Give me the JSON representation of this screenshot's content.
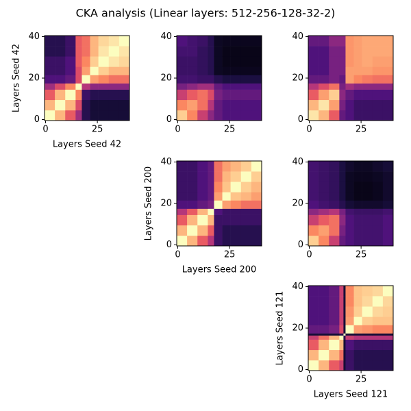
{
  "title": "CKA analysis (Linear layers: 512-256-128-32-2)",
  "chart_data": [
    {
      "type": "heatmap",
      "colormap": "magma",
      "xlabel": "Layers Seed 42",
      "ylabel": "Layers Seed 42",
      "xlim": [
        -0.5,
        40.5
      ],
      "ylim": [
        -0.5,
        40.5
      ],
      "xticks": [
        0,
        25
      ],
      "yticks": [
        0,
        20,
        40
      ],
      "xbins": [
        -0.5,
        4.5,
        9.5,
        14.5,
        17.5,
        21.5,
        25.5,
        30.5,
        35.5,
        40.5
      ],
      "ybins": [
        -0.5,
        4.5,
        9.5,
        14.5,
        17.5,
        21.5,
        25.5,
        30.5,
        35.5,
        40.5
      ],
      "values": [
        [
          1.0,
          0.85,
          0.65,
          0.45,
          0.15,
          0.1,
          0.1,
          0.1,
          0.1
        ],
        [
          0.85,
          1.0,
          0.85,
          0.6,
          0.15,
          0.1,
          0.1,
          0.1,
          0.1
        ],
        [
          0.65,
          0.85,
          1.0,
          0.75,
          0.2,
          0.15,
          0.15,
          0.15,
          0.15
        ],
        [
          0.45,
          0.6,
          0.75,
          1.0,
          0.5,
          0.4,
          0.4,
          0.4,
          0.4
        ],
        [
          0.25,
          0.25,
          0.3,
          0.6,
          1.0,
          0.8,
          0.75,
          0.7,
          0.7
        ],
        [
          0.2,
          0.2,
          0.25,
          0.6,
          0.8,
          1.0,
          0.9,
          0.85,
          0.85
        ],
        [
          0.2,
          0.2,
          0.25,
          0.65,
          0.75,
          0.9,
          1.0,
          0.95,
          0.92
        ],
        [
          0.15,
          0.15,
          0.2,
          0.65,
          0.7,
          0.85,
          0.95,
          1.0,
          0.95
        ],
        [
          0.15,
          0.15,
          0.2,
          0.65,
          0.7,
          0.85,
          0.92,
          0.95,
          1.0
        ]
      ]
    },
    {
      "type": "heatmap",
      "colormap": "magma",
      "xlim": [
        -0.5,
        40.5
      ],
      "ylim": [
        -0.5,
        40.5
      ],
      "xticks": [
        0,
        25
      ],
      "yticks": [
        0,
        20,
        40
      ],
      "xbins": [
        -0.5,
        4.5,
        9.5,
        14.5,
        17.5,
        21.5,
        25.5,
        30.5,
        35.5,
        40.5
      ],
      "ybins": [
        -0.5,
        4.5,
        9.5,
        14.5,
        17.5,
        21.5,
        25.5,
        30.5,
        35.5,
        40.5
      ],
      "values": [
        [
          0.9,
          0.75,
          0.55,
          0.4,
          0.3,
          0.25,
          0.25,
          0.25,
          0.25
        ],
        [
          0.75,
          0.8,
          0.7,
          0.5,
          0.3,
          0.25,
          0.25,
          0.25,
          0.25
        ],
        [
          0.55,
          0.65,
          0.7,
          0.6,
          0.35,
          0.3,
          0.3,
          0.3,
          0.3
        ],
        [
          0.35,
          0.4,
          0.45,
          0.45,
          0.3,
          0.25,
          0.25,
          0.25,
          0.25
        ],
        [
          0.22,
          0.22,
          0.2,
          0.2,
          0.15,
          0.12,
          0.12,
          0.12,
          0.12
        ],
        [
          0.2,
          0.2,
          0.18,
          0.15,
          0.06,
          0.05,
          0.05,
          0.05,
          0.05
        ],
        [
          0.2,
          0.2,
          0.18,
          0.15,
          0.06,
          0.04,
          0.04,
          0.04,
          0.04
        ],
        [
          0.22,
          0.22,
          0.18,
          0.15,
          0.06,
          0.04,
          0.04,
          0.04,
          0.04
        ],
        [
          0.25,
          0.22,
          0.2,
          0.15,
          0.06,
          0.05,
          0.05,
          0.05,
          0.05
        ]
      ]
    },
    {
      "type": "heatmap",
      "colormap": "magma",
      "xlim": [
        -0.5,
        40.5
      ],
      "ylim": [
        -0.5,
        40.5
      ],
      "xticks": [
        0,
        25
      ],
      "yticks": [
        0,
        20,
        40
      ],
      "xbins": [
        -0.5,
        4.5,
        9.5,
        14.5,
        17.5,
        21.5,
        25.5,
        30.5,
        35.5,
        40.5
      ],
      "ybins": [
        -0.5,
        4.5,
        9.5,
        14.5,
        17.5,
        21.5,
        25.5,
        30.5,
        35.5,
        40.5
      ],
      "values": [
        [
          0.95,
          0.85,
          0.65,
          0.3,
          0.25,
          0.2,
          0.2,
          0.2,
          0.2
        ],
        [
          0.85,
          0.95,
          0.8,
          0.35,
          0.25,
          0.2,
          0.2,
          0.2,
          0.2
        ],
        [
          0.65,
          0.8,
          0.9,
          0.4,
          0.3,
          0.25,
          0.25,
          0.25,
          0.25
        ],
        [
          0.5,
          0.6,
          0.7,
          0.35,
          0.45,
          0.4,
          0.4,
          0.4,
          0.4
        ],
        [
          0.3,
          0.3,
          0.35,
          0.3,
          0.8,
          0.75,
          0.72,
          0.7,
          0.7
        ],
        [
          0.25,
          0.25,
          0.35,
          0.35,
          0.8,
          0.8,
          0.8,
          0.78,
          0.78
        ],
        [
          0.25,
          0.25,
          0.35,
          0.35,
          0.78,
          0.8,
          0.82,
          0.8,
          0.8
        ],
        [
          0.25,
          0.25,
          0.35,
          0.35,
          0.78,
          0.8,
          0.82,
          0.82,
          0.82
        ],
        [
          0.3,
          0.3,
          0.4,
          0.4,
          0.78,
          0.8,
          0.82,
          0.82,
          0.82
        ]
      ]
    },
    {
      "type": "heatmap",
      "colormap": "magma",
      "xlabel": "Layers Seed 200",
      "ylabel": "Layers Seed 200",
      "xlim": [
        -0.5,
        40.5
      ],
      "ylim": [
        -0.5,
        40.5
      ],
      "xticks": [
        0,
        25
      ],
      "yticks": [
        0,
        20,
        40
      ],
      "xbins": [
        -0.5,
        4.5,
        9.5,
        14.5,
        17.5,
        21.5,
        25.5,
        30.5,
        35.5,
        40.5
      ],
      "ybins": [
        -0.5,
        4.5,
        9.5,
        14.5,
        17.5,
        21.5,
        25.5,
        30.5,
        35.5,
        40.5
      ],
      "values": [
        [
          1.0,
          0.85,
          0.65,
          0.5,
          0.2,
          0.15,
          0.15,
          0.15,
          0.15
        ],
        [
          0.85,
          1.0,
          0.85,
          0.65,
          0.2,
          0.15,
          0.15,
          0.15,
          0.15
        ],
        [
          0.65,
          0.85,
          1.0,
          0.85,
          0.2,
          0.2,
          0.2,
          0.2,
          0.2
        ],
        [
          0.5,
          0.65,
          0.85,
          1.0,
          0.25,
          0.2,
          0.2,
          0.2,
          0.2
        ],
        [
          0.25,
          0.25,
          0.3,
          0.35,
          1.0,
          0.8,
          0.75,
          0.7,
          0.7
        ],
        [
          0.2,
          0.2,
          0.25,
          0.3,
          0.8,
          1.0,
          0.88,
          0.85,
          0.8
        ],
        [
          0.2,
          0.2,
          0.25,
          0.3,
          0.75,
          0.88,
          1.0,
          0.9,
          0.85
        ],
        [
          0.2,
          0.2,
          0.25,
          0.3,
          0.7,
          0.85,
          0.9,
          1.0,
          0.9
        ],
        [
          0.2,
          0.2,
          0.25,
          0.3,
          0.7,
          0.8,
          0.85,
          0.9,
          1.0
        ]
      ]
    },
    {
      "type": "heatmap",
      "colormap": "magma",
      "xlim": [
        -0.5,
        40.5
      ],
      "ylim": [
        -0.5,
        40.5
      ],
      "xticks": [
        0,
        25
      ],
      "yticks": [
        0,
        20,
        40
      ],
      "xbins": [
        -0.5,
        4.5,
        9.5,
        14.5,
        17.5,
        21.5,
        25.5,
        30.5,
        35.5,
        40.5
      ],
      "ybins": [
        -0.5,
        4.5,
        9.5,
        14.5,
        17.5,
        21.5,
        25.5,
        30.5,
        35.5,
        40.5
      ],
      "values": [
        [
          0.9,
          0.75,
          0.55,
          0.3,
          0.25,
          0.22,
          0.22,
          0.22,
          0.25
        ],
        [
          0.75,
          0.8,
          0.7,
          0.35,
          0.25,
          0.22,
          0.22,
          0.22,
          0.25
        ],
        [
          0.55,
          0.65,
          0.7,
          0.4,
          0.25,
          0.22,
          0.22,
          0.22,
          0.25
        ],
        [
          0.4,
          0.45,
          0.5,
          0.35,
          0.22,
          0.2,
          0.2,
          0.2,
          0.22
        ],
        [
          0.25,
          0.22,
          0.2,
          0.15,
          0.1,
          0.08,
          0.08,
          0.08,
          0.1
        ],
        [
          0.22,
          0.2,
          0.18,
          0.12,
          0.06,
          0.04,
          0.04,
          0.05,
          0.08
        ],
        [
          0.22,
          0.2,
          0.18,
          0.12,
          0.06,
          0.04,
          0.04,
          0.05,
          0.08
        ],
        [
          0.22,
          0.2,
          0.18,
          0.12,
          0.06,
          0.05,
          0.05,
          0.06,
          0.08
        ],
        [
          0.22,
          0.2,
          0.18,
          0.12,
          0.08,
          0.06,
          0.06,
          0.08,
          0.1
        ]
      ]
    },
    {
      "type": "heatmap",
      "colormap": "magma",
      "xlabel": "Layers Seed 121",
      "ylabel": "Layers Seed 121",
      "xlim": [
        -0.5,
        40.5
      ],
      "ylim": [
        -0.5,
        40.5
      ],
      "xticks": [
        0,
        25
      ],
      "yticks": [
        0,
        20,
        40
      ],
      "xbins": [
        -0.5,
        4.5,
        9.5,
        14.5,
        16.5,
        17.5,
        21.5,
        25.5,
        30.5,
        35.5,
        40.5
      ],
      "ybins": [
        -0.5,
        4.5,
        9.5,
        14.5,
        16.5,
        17.5,
        21.5,
        25.5,
        30.5,
        35.5,
        40.5
      ],
      "values": [
        [
          1.0,
          0.85,
          0.65,
          0.55,
          0.1,
          0.2,
          0.15,
          0.15,
          0.15,
          0.15
        ],
        [
          0.85,
          1.0,
          0.85,
          0.7,
          0.1,
          0.2,
          0.15,
          0.15,
          0.15,
          0.15
        ],
        [
          0.65,
          0.85,
          1.0,
          0.85,
          0.1,
          0.25,
          0.2,
          0.2,
          0.2,
          0.2
        ],
        [
          0.55,
          0.7,
          0.85,
          1.0,
          0.15,
          0.55,
          0.5,
          0.5,
          0.5,
          0.5
        ],
        [
          0.1,
          0.1,
          0.1,
          0.15,
          1.0,
          0.1,
          0.1,
          0.1,
          0.1,
          0.1
        ],
        [
          0.3,
          0.3,
          0.35,
          0.6,
          0.1,
          1.0,
          0.8,
          0.78,
          0.75,
          0.75
        ],
        [
          0.25,
          0.25,
          0.3,
          0.55,
          0.1,
          0.8,
          1.0,
          0.9,
          0.88,
          0.88
        ],
        [
          0.25,
          0.25,
          0.3,
          0.55,
          0.1,
          0.78,
          0.9,
          1.0,
          0.92,
          0.9
        ],
        [
          0.25,
          0.25,
          0.3,
          0.55,
          0.1,
          0.75,
          0.88,
          0.92,
          1.0,
          0.92
        ],
        [
          0.25,
          0.25,
          0.3,
          0.55,
          0.1,
          0.75,
          0.88,
          0.9,
          0.92,
          1.0
        ]
      ]
    }
  ]
}
